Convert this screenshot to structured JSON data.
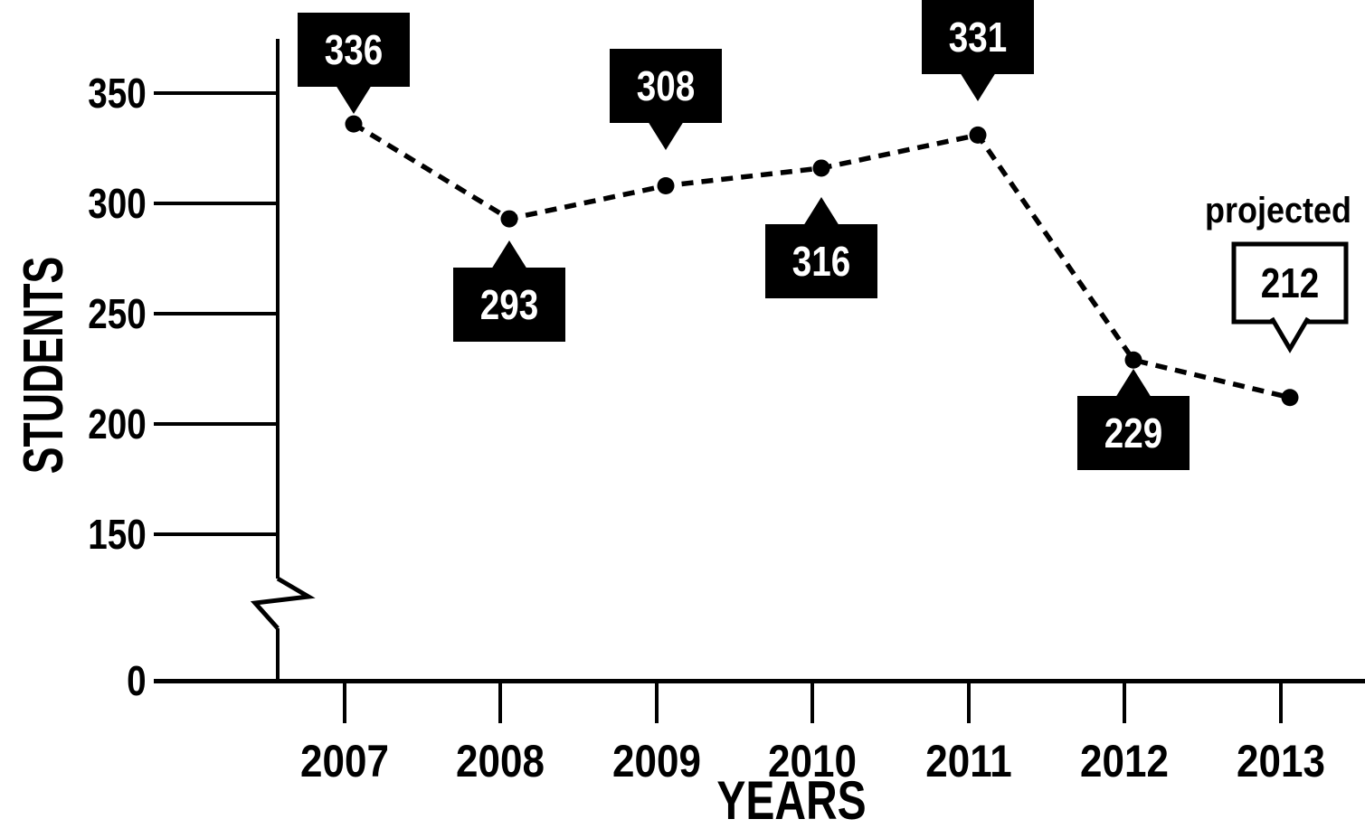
{
  "chart_data": {
    "type": "line",
    "title": "",
    "xlabel": "YEARS",
    "ylabel": "STUDENTS",
    "categories": [
      "2007",
      "2008",
      "2009",
      "2010",
      "2011",
      "2012",
      "2013"
    ],
    "values": [
      336,
      293,
      308,
      316,
      331,
      229,
      212
    ],
    "y_ticks": [
      350,
      300,
      250,
      200,
      150,
      0
    ],
    "ylim": [
      0,
      375
    ],
    "axis_break_between": [
      0,
      150
    ],
    "grid": "off",
    "legend": "none",
    "line_style": "dashed",
    "marker": "filled-circle",
    "annotations": [
      {
        "text": "projected",
        "applies_to": "2013"
      }
    ],
    "callouts": [
      {
        "category": "2007",
        "label": "336",
        "style": "filled",
        "tail": "down"
      },
      {
        "category": "2008",
        "label": "293",
        "style": "filled",
        "tail": "up"
      },
      {
        "category": "2009",
        "label": "308",
        "style": "filled",
        "tail": "down"
      },
      {
        "category": "2010",
        "label": "316",
        "style": "filled",
        "tail": "up"
      },
      {
        "category": "2011",
        "label": "331",
        "style": "filled",
        "tail": "down"
      },
      {
        "category": "2012",
        "label": "229",
        "style": "filled",
        "tail": "up"
      },
      {
        "category": "2013",
        "label": "212",
        "style": "outlined",
        "tail": "down"
      }
    ],
    "colors": {
      "ink": "#000000",
      "background": "#ffffff",
      "callout_filled_bg": "#000000",
      "callout_filled_text": "#ffffff",
      "callout_outlined_bg": "#ffffff",
      "callout_outlined_text": "#000000"
    }
  }
}
